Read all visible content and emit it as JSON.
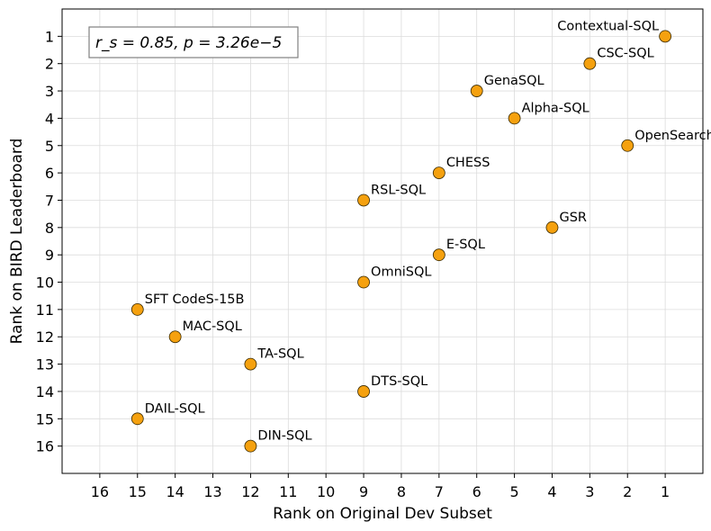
{
  "chart_data": {
    "type": "scatter",
    "title": "",
    "xlabel": "Rank on Original Dev Subset",
    "ylabel": "Rank on BIRD Leaderboard",
    "xlim": [
      17,
      0
    ],
    "ylim": [
      17,
      0
    ],
    "x_ticks": [
      16,
      15,
      14,
      13,
      12,
      11,
      10,
      9,
      8,
      7,
      6,
      5,
      4,
      3,
      2,
      1
    ],
    "y_ticks": [
      1,
      2,
      3,
      4,
      5,
      6,
      7,
      8,
      9,
      10,
      11,
      12,
      13,
      14,
      15,
      16
    ],
    "grid": true,
    "marker_color": "#f5a10f",
    "annotation": "r_s = 0.85, p = 3.26e−5",
    "points": [
      {
        "label": "Contextual-SQL",
        "x": 1,
        "y": 1
      },
      {
        "label": "CSC-SQL",
        "x": 3,
        "y": 2
      },
      {
        "label": "GenaSQL",
        "x": 6,
        "y": 3
      },
      {
        "label": "Alpha-SQL",
        "x": 5,
        "y": 4
      },
      {
        "label": "OpenSearch-SQL",
        "x": 2,
        "y": 5
      },
      {
        "label": "CHESS",
        "x": 7,
        "y": 6
      },
      {
        "label": "RSL-SQL",
        "x": 9,
        "y": 7
      },
      {
        "label": "GSR",
        "x": 4,
        "y": 8
      },
      {
        "label": "E-SQL",
        "x": 7,
        "y": 9
      },
      {
        "label": "OmniSQL",
        "x": 9,
        "y": 10
      },
      {
        "label": "SFT CodeS-15B",
        "x": 15,
        "y": 11
      },
      {
        "label": "MAC-SQL",
        "x": 14,
        "y": 12
      },
      {
        "label": "TA-SQL",
        "x": 12,
        "y": 13
      },
      {
        "label": "DTS-SQL",
        "x": 9,
        "y": 14
      },
      {
        "label": "DAIL-SQL",
        "x": 15,
        "y": 15
      },
      {
        "label": "DIN-SQL",
        "x": 12,
        "y": 16
      }
    ]
  }
}
